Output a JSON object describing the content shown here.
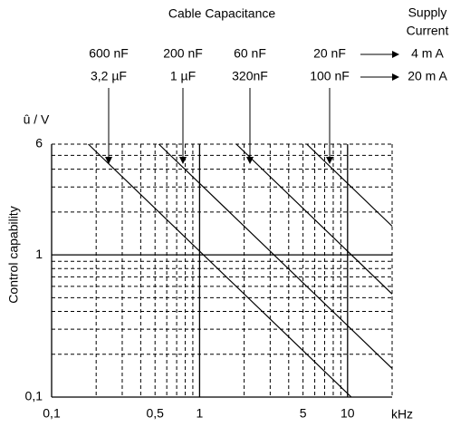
{
  "chart_data": {
    "type": "line",
    "title": "Cable Capacitance",
    "subtitle": [
      "Supply",
      "Current"
    ],
    "y_label_top": "û / V",
    "y_label": "Control capability",
    "x_label": "kHz",
    "log_x": true,
    "log_y": true,
    "xlim": [
      0.1,
      20
    ],
    "ylim": [
      0.1,
      6
    ],
    "xticks": [
      {
        "value": 0.1,
        "label": "0,1"
      },
      {
        "value": 0.5,
        "label": "0,5"
      },
      1,
      5,
      10
    ],
    "yticks": [
      {
        "value": 0.1,
        "label": "0,1"
      },
      1,
      6
    ],
    "xminor": [
      0.2,
      0.3,
      0.4,
      0.5,
      0.6,
      0.7,
      0.8,
      0.9,
      2,
      3,
      4,
      5,
      6,
      7,
      8,
      9,
      20
    ],
    "yminor": [
      0.2,
      0.3,
      0.4,
      0.5,
      0.6,
      0.7,
      0.8,
      0.9,
      2,
      3,
      4,
      5,
      6
    ],
    "supply_current": [
      "4 m A",
      "20 m A"
    ],
    "series": [
      {
        "labels": [
          "600 nF",
          "3,2 µF"
        ],
        "color": "#000",
        "x": [
          0.177,
          10.6
        ],
        "values": [
          6,
          0.1
        ]
      },
      {
        "labels": [
          "200 nF",
          "1 µF"
        ],
        "color": "#000",
        "x": [
          0.53,
          20
        ],
        "values": [
          6,
          0.159
        ]
      },
      {
        "labels": [
          "60 nF",
          "320nF"
        ],
        "color": "#000",
        "x": [
          1.77,
          20
        ],
        "values": [
          6,
          0.53
        ]
      },
      {
        "labels": [
          "20 nF",
          "100 nF"
        ],
        "color": "#000",
        "x": [
          5.3,
          20
        ],
        "values": [
          6,
          1.59
        ]
      }
    ]
  }
}
